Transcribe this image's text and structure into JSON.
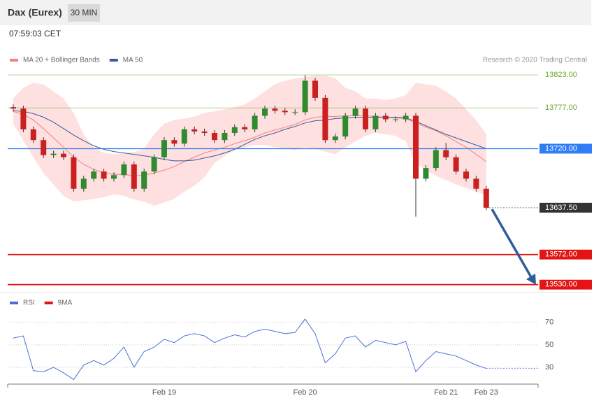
{
  "header": {
    "title": "Dax (Eurex)",
    "interval": "30 MIN",
    "time": "07:59:03 CET"
  },
  "chart_data": [
    {
      "type": "candlestick",
      "credit": "Research © 2020 Trading Central",
      "ylim": [
        13520,
        13830
      ],
      "up_color": "#2e8b2e",
      "down_color": "#cc1f1f",
      "open": [
        13778,
        13776,
        13747,
        13732,
        13711,
        13713,
        13708,
        13664,
        13678,
        13688,
        13678,
        13683,
        13698,
        13664,
        13688,
        13708,
        13732,
        13727,
        13747,
        13744,
        13742,
        13732,
        13742,
        13750,
        13747,
        13766,
        13776,
        13773,
        13771,
        13771,
        13815,
        13791,
        13732,
        13737,
        13766,
        13776,
        13747,
        13766,
        13761,
        13761,
        13766,
        13678,
        13693,
        13718,
        13708,
        13688,
        13678,
        13664
      ],
      "high": [
        13782,
        13780,
        13751,
        13736,
        13717,
        13717,
        13712,
        13682,
        13692,
        13692,
        13687,
        13702,
        13702,
        13692,
        13712,
        13736,
        13736,
        13751,
        13751,
        13748,
        13746,
        13746,
        13754,
        13754,
        13770,
        13780,
        13780,
        13777,
        13775,
        13823,
        13819,
        13795,
        13741,
        13770,
        13780,
        13780,
        13770,
        13770,
        13765,
        13770,
        13770,
        13697,
        13722,
        13728,
        13712,
        13692,
        13682,
        13668
      ],
      "low": [
        13772,
        13743,
        13728,
        13707,
        13707,
        13704,
        13660,
        13660,
        13674,
        13674,
        13674,
        13679,
        13660,
        13660,
        13684,
        13704,
        13723,
        13723,
        13740,
        13738,
        13728,
        13728,
        13738,
        13743,
        13743,
        13762,
        13769,
        13767,
        13767,
        13767,
        13787,
        13728,
        13728,
        13733,
        13762,
        13743,
        13743,
        13757,
        13757,
        13757,
        13625,
        13674,
        13689,
        13704,
        13684,
        13674,
        13660,
        13634
      ],
      "close": [
        13776,
        13747,
        13732,
        13711,
        13713,
        13708,
        13664,
        13678,
        13688,
        13678,
        13683,
        13698,
        13664,
        13688,
        13708,
        13732,
        13727,
        13747,
        13744,
        13742,
        13732,
        13742,
        13750,
        13747,
        13766,
        13776,
        13773,
        13771,
        13771,
        13815,
        13791,
        13732,
        13737,
        13766,
        13776,
        13747,
        13766,
        13761,
        13761,
        13766,
        13678,
        13693,
        13718,
        13708,
        13688,
        13678,
        13664,
        13637.5
      ],
      "series": [
        {
          "name": "MA 20 + Bollinger Bands",
          "color": "#f4837d",
          "band_color": "#fde0df",
          "values": [
            13772,
            13768,
            13760,
            13748,
            13735,
            13722,
            13708,
            13698,
            13691,
            13686,
            13684,
            13684,
            13682,
            13683,
            13686,
            13690,
            13695,
            13702,
            13708,
            13714,
            13718,
            13722,
            13727,
            13731,
            13736,
            13742,
            13746,
            13750,
            13754,
            13760,
            13764,
            13765,
            13765,
            13766,
            13766,
            13766,
            13765,
            13764,
            13763,
            13762,
            13756,
            13750,
            13745,
            13738,
            13730,
            13722,
            13712,
            13702
          ],
          "upper": [
            13790,
            13805,
            13812,
            13810,
            13800,
            13790,
            13770,
            13740,
            13722,
            13714,
            13712,
            13714,
            13715,
            13720,
            13740,
            13755,
            13760,
            13762,
            13765,
            13770,
            13772,
            13775,
            13778,
            13782,
            13790,
            13800,
            13810,
            13815,
            13818,
            13820,
            13822,
            13822,
            13818,
            13805,
            13800,
            13790,
            13790,
            13788,
            13790,
            13795,
            13812,
            13810,
            13808,
            13800,
            13790,
            13775,
            13760,
            13740
          ],
          "lower": [
            13755,
            13731,
            13708,
            13686,
            13670,
            13654,
            13646,
            13648,
            13650,
            13652,
            13656,
            13654,
            13649,
            13646,
            13640,
            13645,
            13650,
            13660,
            13668,
            13680,
            13700,
            13710,
            13718,
            13722,
            13725,
            13725,
            13722,
            13720,
            13718,
            13722,
            13720,
            13716,
            13712,
            13722,
            13730,
            13738,
            13742,
            13740,
            13738,
            13730,
            13700,
            13690,
            13682,
            13676,
            13670,
            13665,
            13660,
            13655
          ]
        },
        {
          "name": "MA 50",
          "color": "#3a5a9a",
          "values": [
            13773,
            13772,
            13769,
            13764,
            13757,
            13748,
            13739,
            13731,
            13724,
            13719,
            13716,
            13714,
            13712,
            13710,
            13708,
            13705,
            13703,
            13703,
            13704,
            13707,
            13710,
            13714,
            13719,
            13726,
            13733,
            13738,
            13742,
            13747,
            13751,
            13756,
            13759,
            13760,
            13762,
            13763,
            13764,
            13764,
            13764,
            13764,
            13764,
            13763,
            13758,
            13752,
            13746,
            13740,
            13735,
            13730,
            13725,
            13720
          ]
        }
      ],
      "levels": [
        {
          "value": 13823,
          "label": "13823.00",
          "color": "#6aaa2a",
          "style": "thin",
          "boxed": false
        },
        {
          "value": 13777,
          "label": "13777.00",
          "color": "#6aaa2a",
          "style": "thin",
          "boxed": false
        },
        {
          "value": 13720,
          "label": "13720.00",
          "color": "#2f7df6",
          "style": "solid",
          "boxed": true
        },
        {
          "value": 13637.5,
          "label": "13637.50",
          "color": "#333333",
          "style": "dotted",
          "boxed": true
        },
        {
          "value": 13572,
          "label": "13572.00",
          "color": "#e41414",
          "style": "thick",
          "boxed": true
        },
        {
          "value": 13530,
          "label": "13530.00",
          "color": "#e41414",
          "style": "thick",
          "boxed": true
        }
      ]
    },
    {
      "type": "line",
      "ylim": [
        15,
        83
      ],
      "yticks": [
        70,
        50,
        30
      ],
      "grid": true,
      "categories": [
        null,
        null,
        null,
        null,
        null,
        null,
        null,
        null,
        null,
        null,
        null,
        null,
        null,
        null,
        null,
        "Feb 19",
        null,
        null,
        null,
        null,
        null,
        null,
        null,
        null,
        null,
        null,
        null,
        null,
        null,
        "Feb 20",
        null,
        null,
        null,
        null,
        null,
        null,
        null,
        null,
        null,
        null,
        null,
        null,
        null,
        "Feb 21",
        null,
        null,
        null,
        "Feb 23"
      ],
      "series": [
        {
          "name": "RSI",
          "color": "#4a6fd6",
          "values": [
            56,
            58,
            27,
            26,
            30,
            25,
            19,
            32,
            36,
            32,
            38,
            48,
            30,
            44,
            48,
            55,
            52,
            58,
            60,
            58,
            52,
            56,
            59,
            57,
            62,
            64,
            62,
            60,
            61,
            73,
            60,
            34,
            42,
            56,
            58,
            48,
            54,
            52,
            50,
            53,
            26,
            36,
            44,
            42,
            40,
            36,
            32,
            29
          ]
        },
        {
          "name": "9MA",
          "color": "#e41414"
        }
      ]
    }
  ]
}
